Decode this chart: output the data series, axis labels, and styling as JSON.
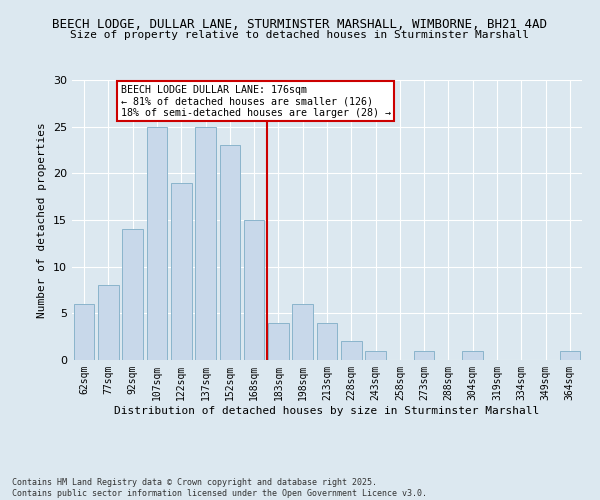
{
  "title1": "BEECH LODGE, DULLAR LANE, STURMINSTER MARSHALL, WIMBORNE, BH21 4AD",
  "title2": "Size of property relative to detached houses in Sturminster Marshall",
  "xlabel": "Distribution of detached houses by size in Sturminster Marshall",
  "ylabel": "Number of detached properties",
  "footer1": "Contains HM Land Registry data © Crown copyright and database right 2025.",
  "footer2": "Contains public sector information licensed under the Open Government Licence v3.0.",
  "bar_labels": [
    "62sqm",
    "77sqm",
    "92sqm",
    "107sqm",
    "122sqm",
    "137sqm",
    "152sqm",
    "168sqm",
    "183sqm",
    "198sqm",
    "213sqm",
    "228sqm",
    "243sqm",
    "258sqm",
    "273sqm",
    "288sqm",
    "304sqm",
    "319sqm",
    "334sqm",
    "349sqm",
    "364sqm"
  ],
  "bar_values": [
    6,
    8,
    14,
    25,
    19,
    25,
    23,
    15,
    4,
    6,
    4,
    2,
    1,
    0,
    1,
    0,
    1,
    0,
    0,
    0,
    1
  ],
  "bar_color": "#c8d8ea",
  "bar_edge_color": "#8ab4cc",
  "vline_color": "#cc0000",
  "annotation_title": "BEECH LODGE DULLAR LANE: 176sqm",
  "annotation_line1": "← 81% of detached houses are smaller (126)",
  "annotation_line2": "18% of semi-detached houses are larger (28) →",
  "annotation_box_color": "#cc0000",
  "ylim": [
    0,
    30
  ],
  "yticks": [
    0,
    5,
    10,
    15,
    20,
    25,
    30
  ],
  "bg_color": "#dce8f0",
  "plot_bg_color": "#dce8f0",
  "grid_color": "#ffffff",
  "title1_fontsize": 9,
  "title2_fontsize": 8,
  "ylabel_fontsize": 8,
  "xlabel_fontsize": 8,
  "tick_fontsize": 7,
  "footer_fontsize": 6
}
